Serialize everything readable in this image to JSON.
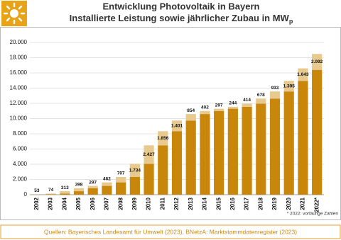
{
  "chart_data": {
    "type": "stacked_bar",
    "title": "Entwicklung Photovoltaik in Bayern",
    "subtitle": "Installierte Leistung sowie jährlicher Zubau in MW",
    "subtitle_subscript": "p",
    "note": "* 2022: vorläufige Zahlen",
    "source": "Quellen: Bayerisches Landesamt für Umwelt (2023), BNetzA: Marktstammdatenregister (2023)",
    "categories": [
      "2002",
      "2003",
      "2004",
      "2005",
      "2006",
      "2007",
      "2008",
      "2009",
      "2010",
      "2011",
      "2012",
      "2013",
      "2014",
      "2015",
      "2016",
      "2017",
      "2018",
      "2019",
      "2020",
      "2021",
      "2022*"
    ],
    "series": [
      {
        "color": "#c8870a",
        "values": [
          20,
          73,
          147,
          460,
          858,
          1155,
          1617,
          2324,
          4058,
          6485,
          8341,
          9742,
          10596,
          10998,
          11295,
          11539,
          11953,
          12631,
          13564,
          14959,
          16402
        ]
      },
      {
        "color": "#e8c98e",
        "values": [
          53,
          74,
          313,
          398,
          297,
          462,
          707,
          1734,
          2427,
          1856,
          1401,
          854,
          402,
          297,
          244,
          414,
          678,
          933,
          1395,
          1643,
          2092
        ],
        "value_labels": [
          "53",
          "74",
          "313",
          "398",
          "297",
          "462",
          "707",
          "1.734",
          "2.427",
          "1.856",
          "1.401",
          "854",
          "402",
          "297",
          "244",
          "414",
          "678",
          "933",
          "1.395",
          "1.643",
          "2.092"
        ]
      }
    ],
    "ylim": [
      0,
      20000
    ],
    "yticks": [
      0,
      {
        "value": 2000,
        "label": "2.000"
      },
      {
        "value": 4000,
        "label": "4.000"
      },
      {
        "value": 6000,
        "label": "6.000"
      },
      {
        "value": 8000,
        "label": "8.000"
      },
      {
        "value": 10000,
        "label": "10.000"
      },
      {
        "value": 12000,
        "label": "12.000"
      },
      {
        "value": 14000,
        "label": "14.000"
      },
      {
        "value": 16000,
        "label": "16.000"
      },
      {
        "value": 18000,
        "label": "18.000"
      },
      {
        "value": 20000,
        "label": "20.000"
      }
    ],
    "grid": true
  }
}
